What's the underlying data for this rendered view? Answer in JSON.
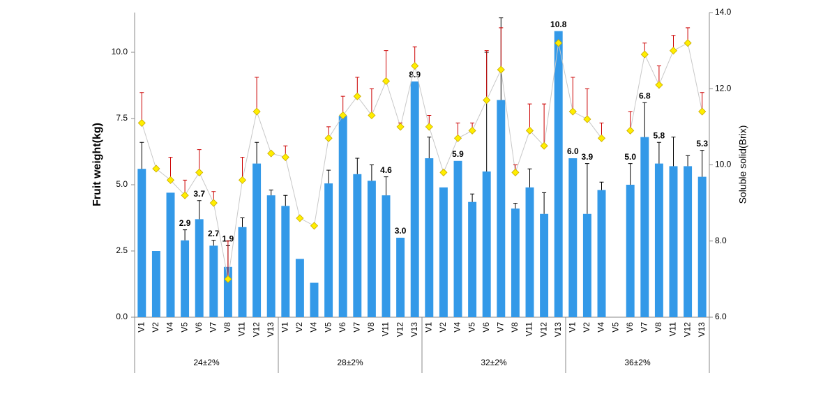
{
  "chart_data": {
    "type": "bar-line",
    "y_label": "Fruit weight(kg)",
    "y2_label": "Soluble solid(Brix)",
    "group_labels": [
      "24±2%",
      "28±2%",
      "32±2%",
      "36±2%"
    ],
    "categories": [
      "V1",
      "V2",
      "V4",
      "V5",
      "V6",
      "V7",
      "V8",
      "V11",
      "V12",
      "V13",
      "V1",
      "V2",
      "V4",
      "V5",
      "V6",
      "V7",
      "V8",
      "V11",
      "V12",
      "V13",
      "V1",
      "V2",
      "V4",
      "V5",
      "V6",
      "V7",
      "V8",
      "V11",
      "V12",
      "V13",
      "V1",
      "V2",
      "V4",
      "V5",
      "V6",
      "V7",
      "V8",
      "V11",
      "V12",
      "V13"
    ],
    "ylim": [
      0,
      11.5
    ],
    "yticks": [
      {
        "value": 0,
        "label": "0.0"
      },
      {
        "value": 2.5,
        "label": "2.5"
      },
      {
        "value": 5,
        "label": "5.0"
      },
      {
        "value": 7.5,
        "label": "7.5"
      },
      {
        "value": 10,
        "label": "10.0"
      }
    ],
    "y2lim": [
      6,
      14
    ],
    "y2ticks": [
      {
        "value": 6,
        "label": "6.0"
      },
      {
        "value": 8,
        "label": "8.0"
      },
      {
        "value": 10,
        "label": "10.0"
      },
      {
        "value": 12,
        "label": "12.0"
      },
      {
        "value": 14,
        "label": "14.0"
      }
    ],
    "series": [
      {
        "type": "bar",
        "color": "#3399e8",
        "error_color": "#000000",
        "values": [
          5.6,
          2.5,
          4.7,
          2.9,
          3.7,
          2.7,
          1.9,
          3.4,
          5.8,
          4.6,
          4.2,
          2.2,
          1.3,
          5.05,
          7.6,
          5.4,
          5.15,
          4.6,
          3.0,
          8.9,
          6.0,
          4.9,
          5.9,
          4.35,
          5.5,
          8.2,
          4.1,
          4.9,
          3.9,
          10.8,
          6.0,
          3.9,
          4.8,
          null,
          5.0,
          6.8,
          5.8,
          5.7,
          5.7,
          5.3
        ],
        "errors": [
          1.0,
          0,
          0,
          0.4,
          0.7,
          0.2,
          0.8,
          0.35,
          0.8,
          0.2,
          0.4,
          0,
          0,
          0.5,
          0,
          0.6,
          0.6,
          0.7,
          0,
          0,
          0.8,
          0,
          0,
          0.3,
          4.5,
          3.1,
          0.2,
          0.7,
          0.8,
          0,
          0,
          1.9,
          0.3,
          null,
          0.8,
          1.3,
          0.8,
          1.1,
          0.4,
          1.0
        ],
        "value_labels": [
          null,
          null,
          null,
          "2.9",
          "3.7",
          "2.7",
          "1.9",
          null,
          null,
          null,
          null,
          null,
          null,
          null,
          null,
          null,
          null,
          "4.6",
          "3.0",
          "8.9",
          null,
          null,
          "5.9",
          null,
          null,
          null,
          null,
          null,
          null,
          "10.8",
          "6.0",
          "3.9",
          null,
          null,
          "5.0",
          "6.8",
          "5.8",
          null,
          null,
          "5.3"
        ]
      },
      {
        "type": "line",
        "axis": "y2",
        "color": "#c8c8c8",
        "marker_color": "#ffee00",
        "error_color": "#cc0000",
        "values": [
          11.1,
          9.9,
          9.6,
          9.2,
          9.8,
          9.0,
          7.0,
          9.6,
          11.4,
          10.3,
          10.2,
          8.6,
          8.4,
          10.7,
          11.3,
          11.8,
          11.3,
          12.2,
          11.0,
          12.6,
          11.0,
          9.8,
          10.7,
          10.9,
          11.7,
          12.5,
          9.8,
          10.9,
          10.5,
          13.2,
          11.4,
          11.2,
          10.7,
          null,
          10.9,
          12.9,
          12.1,
          13.0,
          13.2,
          11.4
        ],
        "errors": [
          0.8,
          0,
          0.6,
          0.4,
          0.6,
          0.3,
          1.0,
          0.6,
          0.9,
          0,
          0.3,
          0,
          0,
          0.3,
          0.5,
          0.5,
          0.7,
          0.8,
          0.1,
          0.5,
          0.3,
          0,
          0.4,
          0.2,
          1.3,
          1.1,
          0.2,
          0.7,
          1.1,
          0,
          0.9,
          0.8,
          0.4,
          null,
          0.5,
          0.3,
          0.5,
          0.4,
          0.4,
          0.5
        ]
      }
    ]
  }
}
